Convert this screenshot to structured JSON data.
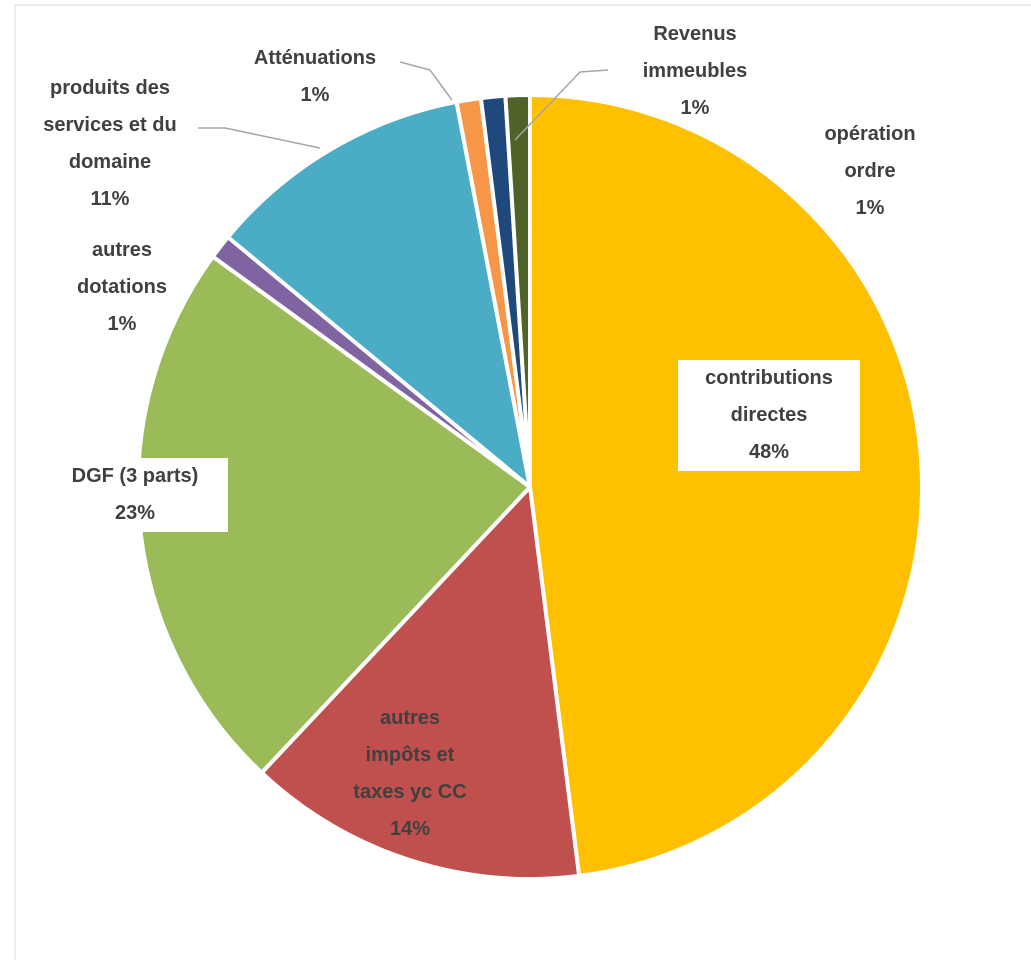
{
  "chart_data": {
    "type": "pie",
    "categories": [
      "contributions directes",
      "autres impôts et taxes yc CC",
      "DGF (3 parts)",
      "autres dotations",
      "produits des services et du domaine",
      "Atténuations",
      "Revenus immeubles",
      "opération ordre"
    ],
    "values": [
      48,
      14,
      23,
      1,
      11,
      1,
      1,
      1
    ],
    "value_labels": [
      "48%",
      "14%",
      "23%",
      "1%",
      "11%",
      "1%",
      "1%",
      "1%"
    ],
    "colors": [
      "#FFC000",
      "#C0504D",
      "#9BBB59",
      "#8064A2",
      "#4BACC6",
      "#F79646",
      "#1F497D",
      "#4F6228"
    ]
  }
}
